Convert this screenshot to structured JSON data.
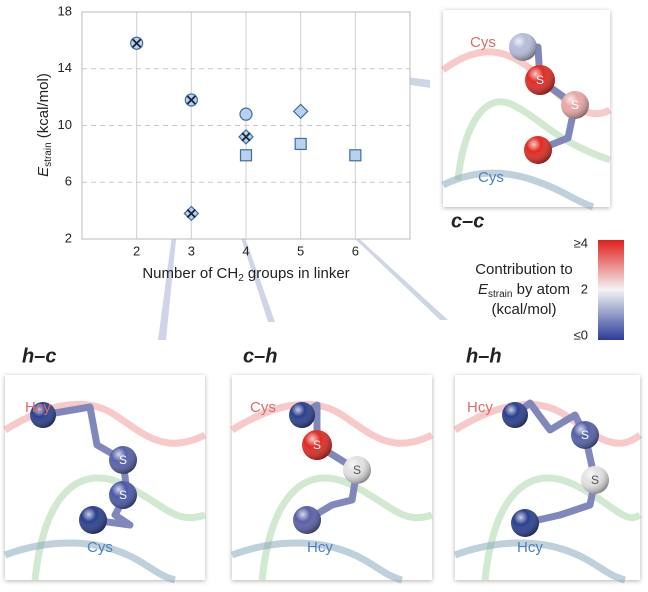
{
  "chart_data": {
    "type": "scatter",
    "xlabel": {
      "text": "Number of CH",
      "sub": "2",
      "rest": " groups in linker"
    },
    "ylabel": {
      "text": "E",
      "sub": "strain",
      "rest": " (kcal/mol)"
    },
    "xlim": [
      1,
      7
    ],
    "xticks": [
      2,
      3,
      4,
      5,
      6
    ],
    "ylim": [
      2,
      18
    ],
    "yticks": [
      2,
      6,
      10,
      14,
      18
    ],
    "grid": true,
    "series": [
      {
        "marker": "circle-x",
        "color": "#b9d1ee",
        "x": [
          2,
          3
        ],
        "values": [
          15.8,
          11.8
        ]
      },
      {
        "marker": "circle",
        "color": "#b9d1ee",
        "x": [
          4
        ],
        "values": [
          10.8
        ]
      },
      {
        "marker": "diamond",
        "color": "#b9d1ee",
        "x": [
          5
        ],
        "values": [
          11.0
        ]
      },
      {
        "marker": "diamond-x",
        "color": "#b9d1ee",
        "x": [
          3,
          4
        ],
        "values": [
          3.8,
          9.2
        ]
      },
      {
        "marker": "square",
        "color": "#b9d1ee",
        "x": [
          4,
          5,
          6
        ],
        "values": [
          7.9,
          8.7,
          7.9
        ]
      }
    ]
  },
  "colorbar": {
    "title": [
      "Contribution to",
      "E",
      "strain",
      " by atom",
      "(kcal/mol)"
    ],
    "lim": [
      0,
      4
    ],
    "ticks": [
      {
        "value": 4,
        "label": "≥4"
      },
      2,
      {
        "value": 0,
        "label": "≤0"
      }
    ]
  },
  "panels": [
    {
      "label": "c–c",
      "top": "Cys",
      "bottom": "Cys",
      "atoms": [
        "S",
        "S"
      ]
    },
    {
      "label": "h–c",
      "top": "Hcy",
      "bottom": "Cys",
      "atoms": [
        "S",
        "S"
      ]
    },
    {
      "label": "c–h",
      "top": "Cys",
      "bottom": "Hcy",
      "atoms": [
        "S",
        "S"
      ]
    },
    {
      "label": "h–h",
      "top": "Hcy",
      "bottom": "Hcy",
      "atoms": [
        "S",
        "S"
      ]
    }
  ]
}
